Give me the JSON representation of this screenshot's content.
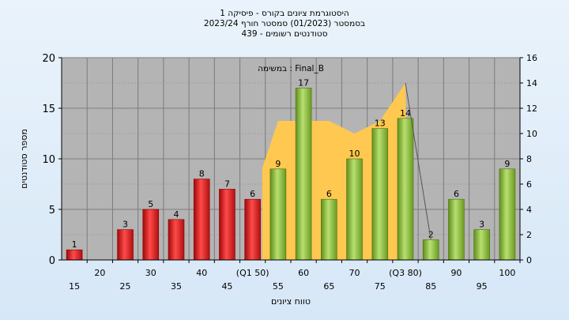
{
  "chart_data": {
    "type": "bar",
    "title_lines": [
      "היסטוגרמת ציונים בקורס - פיסיקה 1",
      "בסמסטר  (01/2023)  סמסטר חורף  2023/24",
      "סטודנטים רשומים - 439"
    ],
    "ylabel": "מספר סטודנטים",
    "xlabel": "טווח ציונים",
    "annotation": "במשימה : Final_B",
    "ylim": [
      0,
      20
    ],
    "y_ticks": [
      0,
      5,
      10,
      15,
      20
    ],
    "y2lim": [
      0,
      16
    ],
    "y2_ticks": [
      0,
      2,
      4,
      6,
      8,
      10,
      12,
      14,
      16
    ],
    "grid": true,
    "x_tick_labels": [
      {
        "label": "15",
        "row": "low"
      },
      {
        "label": "20",
        "row": "high"
      },
      {
        "label": "25",
        "row": "low"
      },
      {
        "label": "30",
        "row": "high"
      },
      {
        "label": "35",
        "row": "low"
      },
      {
        "label": "40",
        "row": "high"
      },
      {
        "label": "45",
        "row": "low"
      },
      {
        "label": "(Q1 50)",
        "row": "high"
      },
      {
        "label": "55",
        "row": "low"
      },
      {
        "label": "60",
        "row": "high"
      },
      {
        "label": "65",
        "row": "low"
      },
      {
        "label": "70",
        "row": "high"
      },
      {
        "label": "75",
        "row": "low"
      },
      {
        "label": "(Q3 80)",
        "row": "high"
      },
      {
        "label": "85",
        "row": "low"
      },
      {
        "label": "90",
        "row": "high"
      },
      {
        "label": "95",
        "row": "low"
      },
      {
        "label": "100",
        "row": "high"
      }
    ],
    "values": [
      1,
      0,
      3,
      5,
      4,
      8,
      7,
      6,
      9,
      17,
      6,
      10,
      13,
      14,
      2,
      6,
      3,
      9
    ],
    "bar_colors": [
      "red",
      "red",
      "red",
      "red",
      "red",
      "red",
      "red",
      "red",
      "green",
      "green",
      "green",
      "green",
      "green",
      "green",
      "green",
      "green",
      "green",
      "green"
    ],
    "area_y2": [
      11,
      11,
      11,
      10,
      11,
      14
    ],
    "area_segments": [
      8,
      9,
      10,
      11,
      12,
      13
    ],
    "area_fill": "#ffc850",
    "line_points": [
      [
        13,
        14
      ],
      [
        14,
        2
      ]
    ],
    "colors": {
      "red": "#e02020",
      "green": "#8cbc38",
      "plot_bg": "#b4b4b4"
    }
  }
}
